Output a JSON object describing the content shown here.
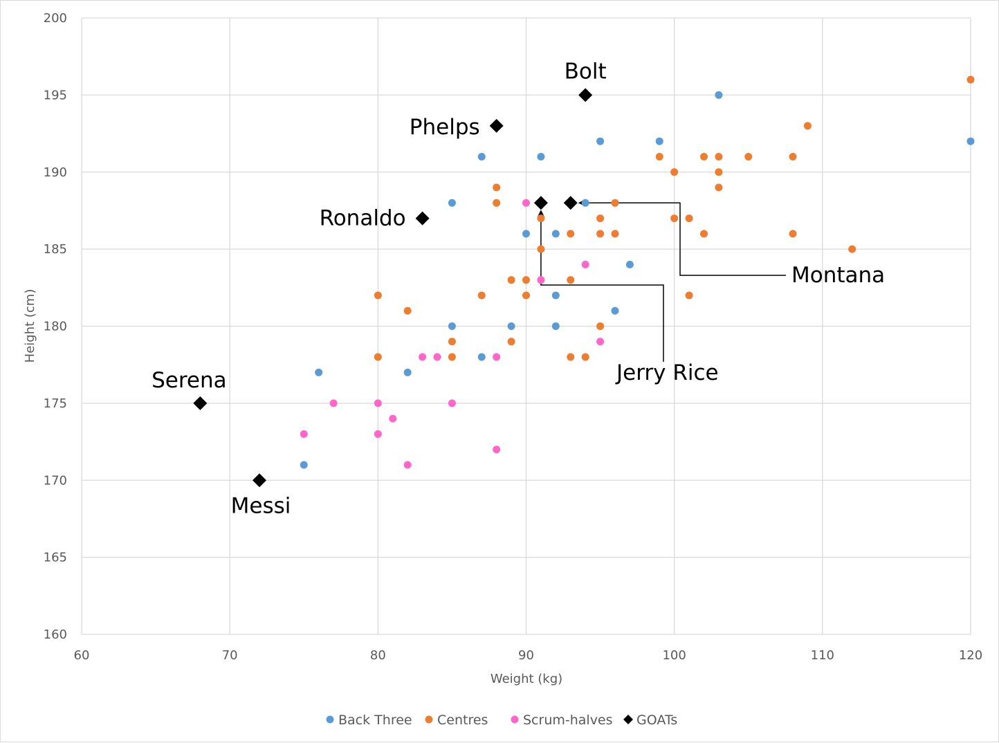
{
  "chart_data": {
    "type": "scatter",
    "title": "",
    "xlabel": "Weight (kg)",
    "ylabel": "Height (cm)",
    "xlim": [
      60,
      120
    ],
    "ylim": [
      160,
      200
    ],
    "xticks": [
      60,
      70,
      80,
      90,
      100,
      110,
      120
    ],
    "yticks": [
      160,
      165,
      170,
      175,
      180,
      185,
      190,
      195,
      200
    ],
    "grid": true,
    "legend_position": "bottom",
    "series": [
      {
        "name": "Back Three",
        "color": "#5b9bd5",
        "marker": "circle",
        "points": [
          [
            103,
            195
          ],
          [
            95,
            192
          ],
          [
            99,
            192
          ],
          [
            120,
            192
          ],
          [
            87,
            191
          ],
          [
            91,
            191
          ],
          [
            85,
            188
          ],
          [
            94,
            188
          ],
          [
            90,
            186
          ],
          [
            92,
            186
          ],
          [
            97,
            184
          ],
          [
            92,
            182
          ],
          [
            96,
            181
          ],
          [
            85,
            180
          ],
          [
            89,
            180
          ],
          [
            92,
            180
          ],
          [
            87,
            178
          ],
          [
            76,
            177
          ],
          [
            82,
            177
          ],
          [
            75,
            171
          ]
        ]
      },
      {
        "name": "Centres",
        "color": "#ed7d31",
        "marker": "circle",
        "points": [
          [
            120,
            196
          ],
          [
            109,
            193
          ],
          [
            99,
            191
          ],
          [
            102,
            191
          ],
          [
            103,
            191
          ],
          [
            105,
            191
          ],
          [
            108,
            191
          ],
          [
            100,
            190
          ],
          [
            103,
            190
          ],
          [
            88,
            189
          ],
          [
            103,
            189
          ],
          [
            88,
            188
          ],
          [
            96,
            188
          ],
          [
            91,
            187
          ],
          [
            95,
            187
          ],
          [
            100,
            187
          ],
          [
            101,
            187
          ],
          [
            93,
            186
          ],
          [
            95,
            186
          ],
          [
            96,
            186
          ],
          [
            102,
            186
          ],
          [
            108,
            186
          ],
          [
            91,
            185
          ],
          [
            112,
            185
          ],
          [
            89,
            183
          ],
          [
            90,
            183
          ],
          [
            93,
            183
          ],
          [
            80,
            182
          ],
          [
            87,
            182
          ],
          [
            90,
            182
          ],
          [
            101,
            182
          ],
          [
            82,
            181
          ],
          [
            95,
            180
          ],
          [
            85,
            179
          ],
          [
            89,
            179
          ],
          [
            80,
            178
          ],
          [
            85,
            178
          ],
          [
            93,
            178
          ],
          [
            94,
            178
          ]
        ]
      },
      {
        "name": "Scrum-halves",
        "color": "#ff66cc",
        "marker": "circle",
        "points": [
          [
            90,
            188
          ],
          [
            94,
            184
          ],
          [
            91,
            183
          ],
          [
            95,
            179
          ],
          [
            83,
            178
          ],
          [
            84,
            178
          ],
          [
            88,
            178
          ],
          [
            77,
            175
          ],
          [
            80,
            175
          ],
          [
            85,
            175
          ],
          [
            81,
            174
          ],
          [
            75,
            173
          ],
          [
            80,
            173
          ],
          [
            88,
            172
          ],
          [
            82,
            171
          ]
        ]
      },
      {
        "name": "GOATs",
        "color": "#000000",
        "marker": "diamond",
        "points": [
          [
            94,
            195
          ],
          [
            88,
            193
          ],
          [
            91,
            188
          ],
          [
            93,
            188
          ],
          [
            83,
            187
          ],
          [
            68,
            175
          ],
          [
            72,
            170
          ]
        ]
      }
    ],
    "annotations": [
      {
        "label": "Bolt",
        "x": 94,
        "y": 195
      },
      {
        "label": "Phelps",
        "x": 88,
        "y": 193
      },
      {
        "label": "Ronaldo",
        "x": 83,
        "y": 187
      },
      {
        "label": "Montana",
        "x": 93,
        "y": 188
      },
      {
        "label": "Jerry Rice",
        "x": 91,
        "y": 188
      },
      {
        "label": "Serena",
        "x": 68,
        "y": 175
      },
      {
        "label": "Messi",
        "x": 72,
        "y": 170
      }
    ]
  }
}
